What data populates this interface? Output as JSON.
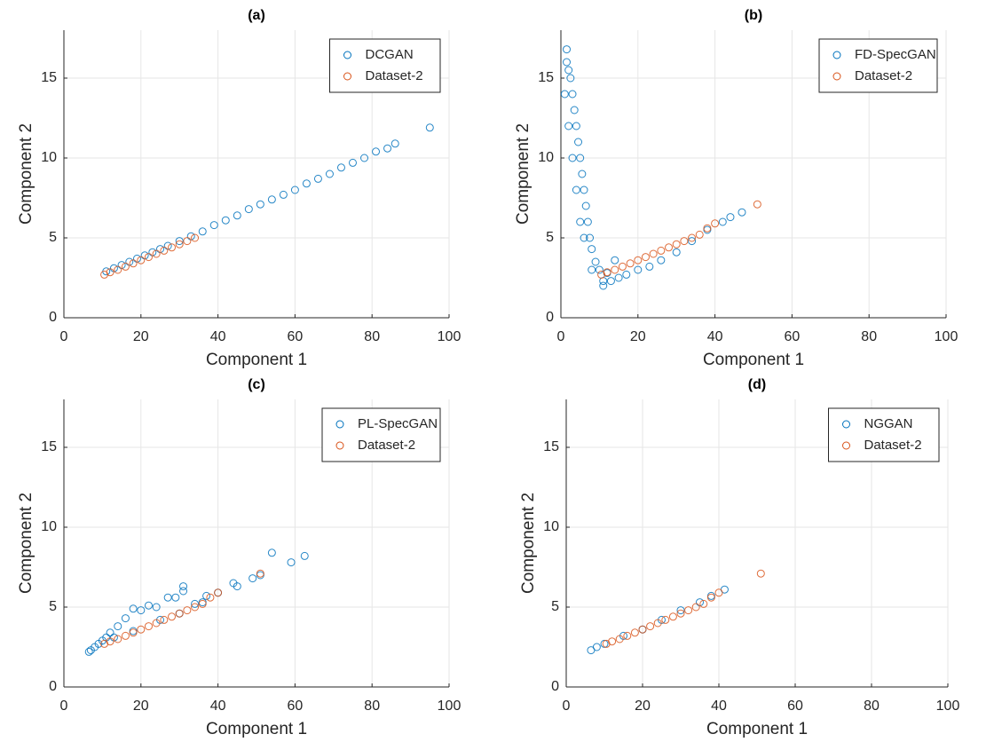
{
  "chart_data": [
    {
      "type": "scatter",
      "title": "(a)",
      "x_label": "Component 1",
      "y_label": "Component 2",
      "xlim": [
        0,
        100
      ],
      "ylim": [
        0,
        18
      ],
      "xticks": [
        0,
        20,
        40,
        60,
        80,
        100
      ],
      "yticks": [
        0,
        5,
        10,
        15
      ],
      "grid": true,
      "legend": "upper right",
      "series": [
        {
          "name": "DCGAN",
          "color": "#0072BD",
          "x": [
            11,
            13,
            15,
            17,
            19,
            21,
            23,
            25,
            27,
            30,
            33,
            36,
            39,
            42,
            45,
            48,
            51,
            54,
            57,
            60,
            63,
            66,
            69,
            72,
            75,
            78,
            81,
            84,
            86,
            95
          ],
          "y": [
            2.9,
            3.1,
            3.3,
            3.5,
            3.7,
            3.9,
            4.1,
            4.3,
            4.5,
            4.8,
            5.1,
            5.4,
            5.8,
            6.1,
            6.4,
            6.8,
            7.1,
            7.4,
            7.7,
            8.0,
            8.4,
            8.7,
            9.0,
            9.4,
            9.7,
            10.0,
            10.4,
            10.6,
            10.9,
            11.9
          ]
        },
        {
          "name": "Dataset-2",
          "color": "#D95319",
          "x": [
            10.5,
            12,
            14,
            16,
            18,
            20,
            22,
            24,
            26,
            28,
            30,
            32,
            34
          ],
          "y": [
            2.7,
            2.85,
            3.0,
            3.2,
            3.4,
            3.6,
            3.8,
            4.0,
            4.2,
            4.4,
            4.6,
            4.8,
            5.0
          ]
        }
      ]
    },
    {
      "type": "scatter",
      "title": "(b)",
      "x_label": "Component 1",
      "y_label": "Component 2",
      "xlim": [
        0,
        100
      ],
      "ylim": [
        0,
        18
      ],
      "xticks": [
        0,
        20,
        40,
        60,
        80,
        100
      ],
      "yticks": [
        0,
        5,
        10,
        15
      ],
      "grid": true,
      "legend": "upper right",
      "series": [
        {
          "name": "FD-SpecGAN",
          "color": "#0072BD",
          "x": [
            1.5,
            1.5,
            2,
            2.5,
            3,
            3.5,
            4,
            4.5,
            5,
            5.5,
            6,
            6.5,
            7,
            7.5,
            8,
            9,
            10,
            11,
            11,
            13,
            15,
            17,
            20,
            23,
            26,
            30,
            34,
            38,
            42,
            44,
            47,
            1,
            2,
            3,
            4,
            5,
            6,
            8,
            12,
            14
          ],
          "y": [
            16.8,
            16,
            15.5,
            15,
            14,
            13,
            12,
            11,
            10,
            9,
            8,
            7,
            6,
            5,
            4.3,
            3.5,
            3,
            2.3,
            2,
            2.3,
            2.5,
            2.7,
            3.0,
            3.2,
            3.6,
            4.1,
            4.8,
            5.5,
            6.0,
            6.3,
            6.6,
            14,
            12,
            10,
            8,
            6,
            5,
            3,
            2.8,
            3.6
          ]
        },
        {
          "name": "Dataset-2",
          "color": "#D95319",
          "x": [
            10.5,
            12,
            14,
            16,
            18,
            20,
            22,
            24,
            26,
            28,
            30,
            32,
            34,
            36,
            38,
            40,
            51
          ],
          "y": [
            2.7,
            2.85,
            3.0,
            3.2,
            3.4,
            3.6,
            3.8,
            4.0,
            4.2,
            4.4,
            4.6,
            4.8,
            5.0,
            5.2,
            5.6,
            5.9,
            7.1
          ]
        }
      ]
    },
    {
      "type": "scatter",
      "title": "(c)",
      "x_label": "Component 1",
      "y_label": "Component 2",
      "xlim": [
        0,
        100
      ],
      "ylim": [
        0,
        18
      ],
      "xticks": [
        0,
        20,
        40,
        60,
        80,
        100
      ],
      "yticks": [
        0,
        5,
        10,
        15
      ],
      "grid": true,
      "legend": "upper right",
      "series": [
        {
          "name": "PL-SpecGAN",
          "color": "#0072BD",
          "x": [
            6.5,
            7,
            8,
            9,
            10,
            11,
            12,
            14,
            16,
            18,
            20,
            22,
            24,
            27,
            29,
            31,
            31,
            34,
            37,
            40,
            44,
            45,
            49,
            51,
            54,
            59,
            62.5,
            13,
            18,
            25,
            30,
            36
          ],
          "y": [
            2.2,
            2.3,
            2.5,
            2.7,
            2.9,
            3.1,
            3.4,
            3.8,
            4.3,
            4.9,
            4.8,
            5.1,
            5.0,
            5.6,
            5.6,
            6.3,
            6.0,
            5.2,
            5.7,
            5.9,
            6.5,
            6.3,
            6.8,
            7.0,
            8.4,
            7.8,
            8.2,
            3.1,
            3.5,
            4.2,
            4.6,
            5.3
          ]
        },
        {
          "name": "Dataset-2",
          "color": "#D95319",
          "x": [
            10.5,
            12,
            14,
            16,
            18,
            20,
            22,
            24,
            26,
            28,
            30,
            32,
            34,
            36,
            38,
            40,
            51
          ],
          "y": [
            2.7,
            2.85,
            3.0,
            3.2,
            3.4,
            3.6,
            3.8,
            4.0,
            4.2,
            4.4,
            4.6,
            4.8,
            5.0,
            5.2,
            5.6,
            5.9,
            7.1
          ]
        }
      ]
    },
    {
      "type": "scatter",
      "title": "(d)",
      "x_label": "Component 1",
      "y_label": "Component 2",
      "xlim": [
        0,
        100
      ],
      "ylim": [
        0,
        18
      ],
      "xticks": [
        0,
        20,
        40,
        60,
        80,
        100
      ],
      "yticks": [
        0,
        5,
        10,
        15
      ],
      "grid": true,
      "legend": "upper right",
      "series": [
        {
          "name": "NGGAN",
          "color": "#0072BD",
          "x": [
            6.5,
            8,
            10,
            15,
            20,
            25,
            30,
            35,
            38,
            41.5
          ],
          "y": [
            2.3,
            2.5,
            2.7,
            3.2,
            3.6,
            4.2,
            4.8,
            5.3,
            5.7,
            6.1
          ]
        },
        {
          "name": "Dataset-2",
          "color": "#D95319",
          "x": [
            10.5,
            12,
            14,
            16,
            18,
            20,
            22,
            24,
            26,
            28,
            30,
            32,
            34,
            36,
            38,
            40,
            51
          ],
          "y": [
            2.7,
            2.85,
            3.0,
            3.2,
            3.4,
            3.6,
            3.8,
            4.0,
            4.2,
            4.4,
            4.6,
            4.8,
            5.0,
            5.2,
            5.6,
            5.9,
            7.1
          ]
        }
      ]
    }
  ]
}
